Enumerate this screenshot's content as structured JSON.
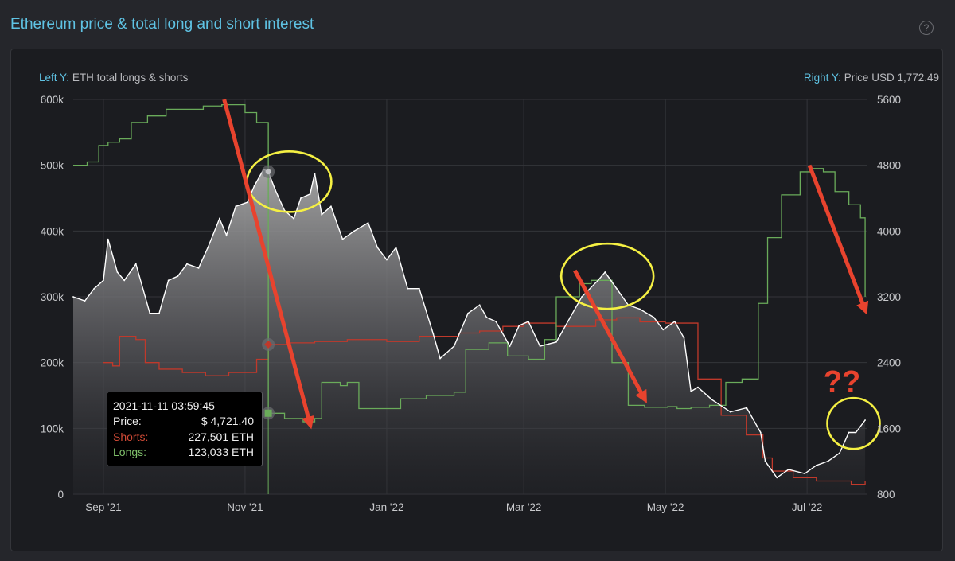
{
  "header": {
    "title": "Ethereum price & total long and short interest",
    "help_icon": "question-circle-icon"
  },
  "axis_titles": {
    "left_prefix": "Left Y:",
    "left_text": "ETH total longs & shorts",
    "right_prefix": "Right Y:",
    "right_text": "Price USD 1,772.49"
  },
  "tooltip": {
    "timestamp": "2021-11-11 03:59:45",
    "price_label": "Price:",
    "price_value": "$ 4,721.40",
    "shorts_label": "Shorts:",
    "shorts_value": "227,501 ETH",
    "longs_label": "Longs:",
    "longs_value": "123,033 ETH"
  },
  "colors": {
    "price": "#ffffff",
    "shorts": "#c0392b",
    "longs": "#6aab5a",
    "accent": "#5fc3e4",
    "annotation_arrow": "#e8432e",
    "annotation_circle": "#f5f043"
  },
  "annotations": {
    "question_marks": "??"
  },
  "chart_data": {
    "type": "line",
    "x_ticks": [
      "Sep '21",
      "Nov '21",
      "Jan '22",
      "Mar '22",
      "May '22",
      "Jul '22"
    ],
    "x_tick_dates": [
      "2021-09-01",
      "2021-11-01",
      "2022-01-01",
      "2022-03-01",
      "2022-05-01",
      "2022-07-01"
    ],
    "x_range": [
      "2021-08-19",
      "2022-07-27"
    ],
    "y_left": {
      "label": "ETH total longs & shorts",
      "range": [
        0,
        600000
      ],
      "ticks": [
        "0",
        "100k",
        "200k",
        "300k",
        "400k",
        "500k",
        "600k"
      ]
    },
    "y_right": {
      "label": "Price USD",
      "range": [
        800,
        5600
      ],
      "ticks": [
        "800",
        "1600",
        "2400",
        "3200",
        "4000",
        "4800",
        "5600"
      ]
    },
    "grid": true,
    "series": [
      {
        "name": "Price",
        "axis": "right",
        "x": [
          "2021-08-19",
          "2021-08-24",
          "2021-08-28",
          "2021-09-01",
          "2021-09-03",
          "2021-09-07",
          "2021-09-10",
          "2021-09-15",
          "2021-09-21",
          "2021-09-25",
          "2021-09-29",
          "2021-10-03",
          "2021-10-07",
          "2021-10-12",
          "2021-10-16",
          "2021-10-21",
          "2021-10-24",
          "2021-10-28",
          "2021-11-02",
          "2021-11-05",
          "2021-11-09",
          "2021-11-11",
          "2021-11-14",
          "2021-11-18",
          "2021-11-22",
          "2021-11-25",
          "2021-11-29",
          "2021-12-01",
          "2021-12-04",
          "2021-12-08",
          "2021-12-13",
          "2021-12-18",
          "2021-12-24",
          "2021-12-28",
          "2022-01-01",
          "2022-01-05",
          "2022-01-10",
          "2022-01-15",
          "2022-01-21",
          "2022-01-24",
          "2022-01-30",
          "2022-02-05",
          "2022-02-10",
          "2022-02-13",
          "2022-02-17",
          "2022-02-23",
          "2022-02-27",
          "2022-03-03",
          "2022-03-08",
          "2022-03-15",
          "2022-03-21",
          "2022-03-26",
          "2022-04-02",
          "2022-04-05",
          "2022-04-10",
          "2022-04-15",
          "2022-04-20",
          "2022-04-26",
          "2022-04-30",
          "2022-05-05",
          "2022-05-09",
          "2022-05-12",
          "2022-05-15",
          "2022-05-21",
          "2022-05-29",
          "2022-06-05",
          "2022-06-11",
          "2022-06-13",
          "2022-06-18",
          "2022-06-23",
          "2022-06-30",
          "2022-07-05",
          "2022-07-10",
          "2022-07-15",
          "2022-07-19",
          "2022-07-22",
          "2022-07-26"
        ],
        "values": [
          3200,
          3150,
          3300,
          3400,
          3900,
          3500,
          3400,
          3600,
          3000,
          3000,
          3400,
          3450,
          3600,
          3550,
          3800,
          4150,
          3950,
          4300,
          4350,
          4550,
          4750,
          4721,
          4500,
          4250,
          4150,
          4400,
          4450,
          4700,
          4200,
          4300,
          3900,
          4000,
          4100,
          3800,
          3650,
          3800,
          3300,
          3300,
          2750,
          2450,
          2600,
          3000,
          3100,
          2950,
          2900,
          2600,
          2850,
          2900,
          2600,
          2650,
          2950,
          3200,
          3400,
          3500,
          3300,
          3100,
          3050,
          2950,
          2800,
          2900,
          2700,
          2050,
          2100,
          1950,
          1800,
          1850,
          1550,
          1200,
          1000,
          1100,
          1050,
          1150,
          1200,
          1300,
          1550,
          1550,
          1700
        ]
      },
      {
        "name": "Shorts",
        "axis": "left",
        "x": [
          "2021-09-01",
          "2021-09-05",
          "2021-09-08",
          "2021-09-15",
          "2021-09-19",
          "2021-09-25",
          "2021-10-05",
          "2021-10-15",
          "2021-10-25",
          "2021-11-01",
          "2021-11-06",
          "2021-11-11",
          "2021-11-20",
          "2021-12-01",
          "2021-12-15",
          "2022-01-01",
          "2022-01-15",
          "2022-02-01",
          "2022-02-10",
          "2022-02-20",
          "2022-03-01",
          "2022-03-15",
          "2022-04-01",
          "2022-04-10",
          "2022-04-20",
          "2022-05-01",
          "2022-05-10",
          "2022-05-15",
          "2022-05-25",
          "2022-06-05",
          "2022-06-12",
          "2022-06-16",
          "2022-06-25",
          "2022-07-05",
          "2022-07-15",
          "2022-07-20",
          "2022-07-26"
        ],
        "values": [
          200000,
          195000,
          240000,
          235000,
          200000,
          190000,
          185000,
          180000,
          185000,
          185000,
          205000,
          227501,
          230000,
          232000,
          235000,
          232000,
          240000,
          245000,
          248000,
          255000,
          260000,
          255000,
          265000,
          268000,
          262000,
          260000,
          260000,
          175000,
          120000,
          90000,
          55000,
          35000,
          25000,
          20000,
          20000,
          15000,
          20000
        ]
      },
      {
        "name": "Longs",
        "axis": "left",
        "x": [
          "2021-08-19",
          "2021-08-25",
          "2021-08-30",
          "2021-09-03",
          "2021-09-08",
          "2021-09-13",
          "2021-09-20",
          "2021-09-28",
          "2021-10-07",
          "2021-10-14",
          "2021-10-22",
          "2021-11-01",
          "2021-11-06",
          "2021-11-10",
          "2021-11-11",
          "2021-11-18",
          "2021-11-26",
          "2021-12-01",
          "2021-12-04",
          "2021-12-12",
          "2021-12-15",
          "2021-12-20",
          "2022-01-02",
          "2022-01-07",
          "2022-01-18",
          "2022-01-30",
          "2022-02-04",
          "2022-02-14",
          "2022-02-22",
          "2022-03-03",
          "2022-03-10",
          "2022-03-15",
          "2022-03-25",
          "2022-03-30",
          "2022-04-02",
          "2022-04-08",
          "2022-04-15",
          "2022-04-22",
          "2022-05-02",
          "2022-05-06",
          "2022-05-12",
          "2022-05-20",
          "2022-05-27",
          "2022-06-03",
          "2022-06-08",
          "2022-06-10",
          "2022-06-14",
          "2022-06-20",
          "2022-06-28",
          "2022-07-03",
          "2022-07-08",
          "2022-07-13",
          "2022-07-19",
          "2022-07-24",
          "2022-07-26"
        ],
        "values": [
          500000,
          505000,
          530000,
          535000,
          540000,
          565000,
          575000,
          585000,
          585000,
          590000,
          592000,
          580000,
          565000,
          565000,
          123033,
          115000,
          110000,
          115000,
          170000,
          165000,
          170000,
          130000,
          130000,
          145000,
          150000,
          155000,
          220000,
          230000,
          210000,
          205000,
          235000,
          300000,
          320000,
          325000,
          325000,
          200000,
          135000,
          132000,
          133000,
          130000,
          132000,
          135000,
          170000,
          175000,
          175000,
          290000,
          390000,
          455000,
          490000,
          495000,
          490000,
          460000,
          440000,
          420000,
          300000
        ]
      }
    ],
    "marker": {
      "date": "2021-11-11",
      "price": 4721.4,
      "shorts": 227501,
      "longs": 123033
    },
    "annotation_arrows": [
      {
        "from": [
          "2021-10-23",
          5600
        ],
        "to": [
          "2021-11-29",
          1650
        ],
        "axis": "right"
      },
      {
        "from": [
          "2022-03-23",
          3520
        ],
        "to": [
          "2022-04-22",
          1960
        ],
        "axis": "right"
      },
      {
        "from": [
          "2022-07-02",
          4800
        ],
        "to": [
          "2022-07-26",
          3040
        ],
        "axis": "right"
      }
    ],
    "annotation_circles": [
      {
        "center": [
          "2021-11-20",
          4600
        ],
        "axis": "right"
      },
      {
        "center": [
          "2022-04-06",
          3450
        ],
        "axis": "right"
      },
      {
        "center": [
          "2022-07-21",
          1660
        ],
        "axis": "right"
      }
    ]
  }
}
